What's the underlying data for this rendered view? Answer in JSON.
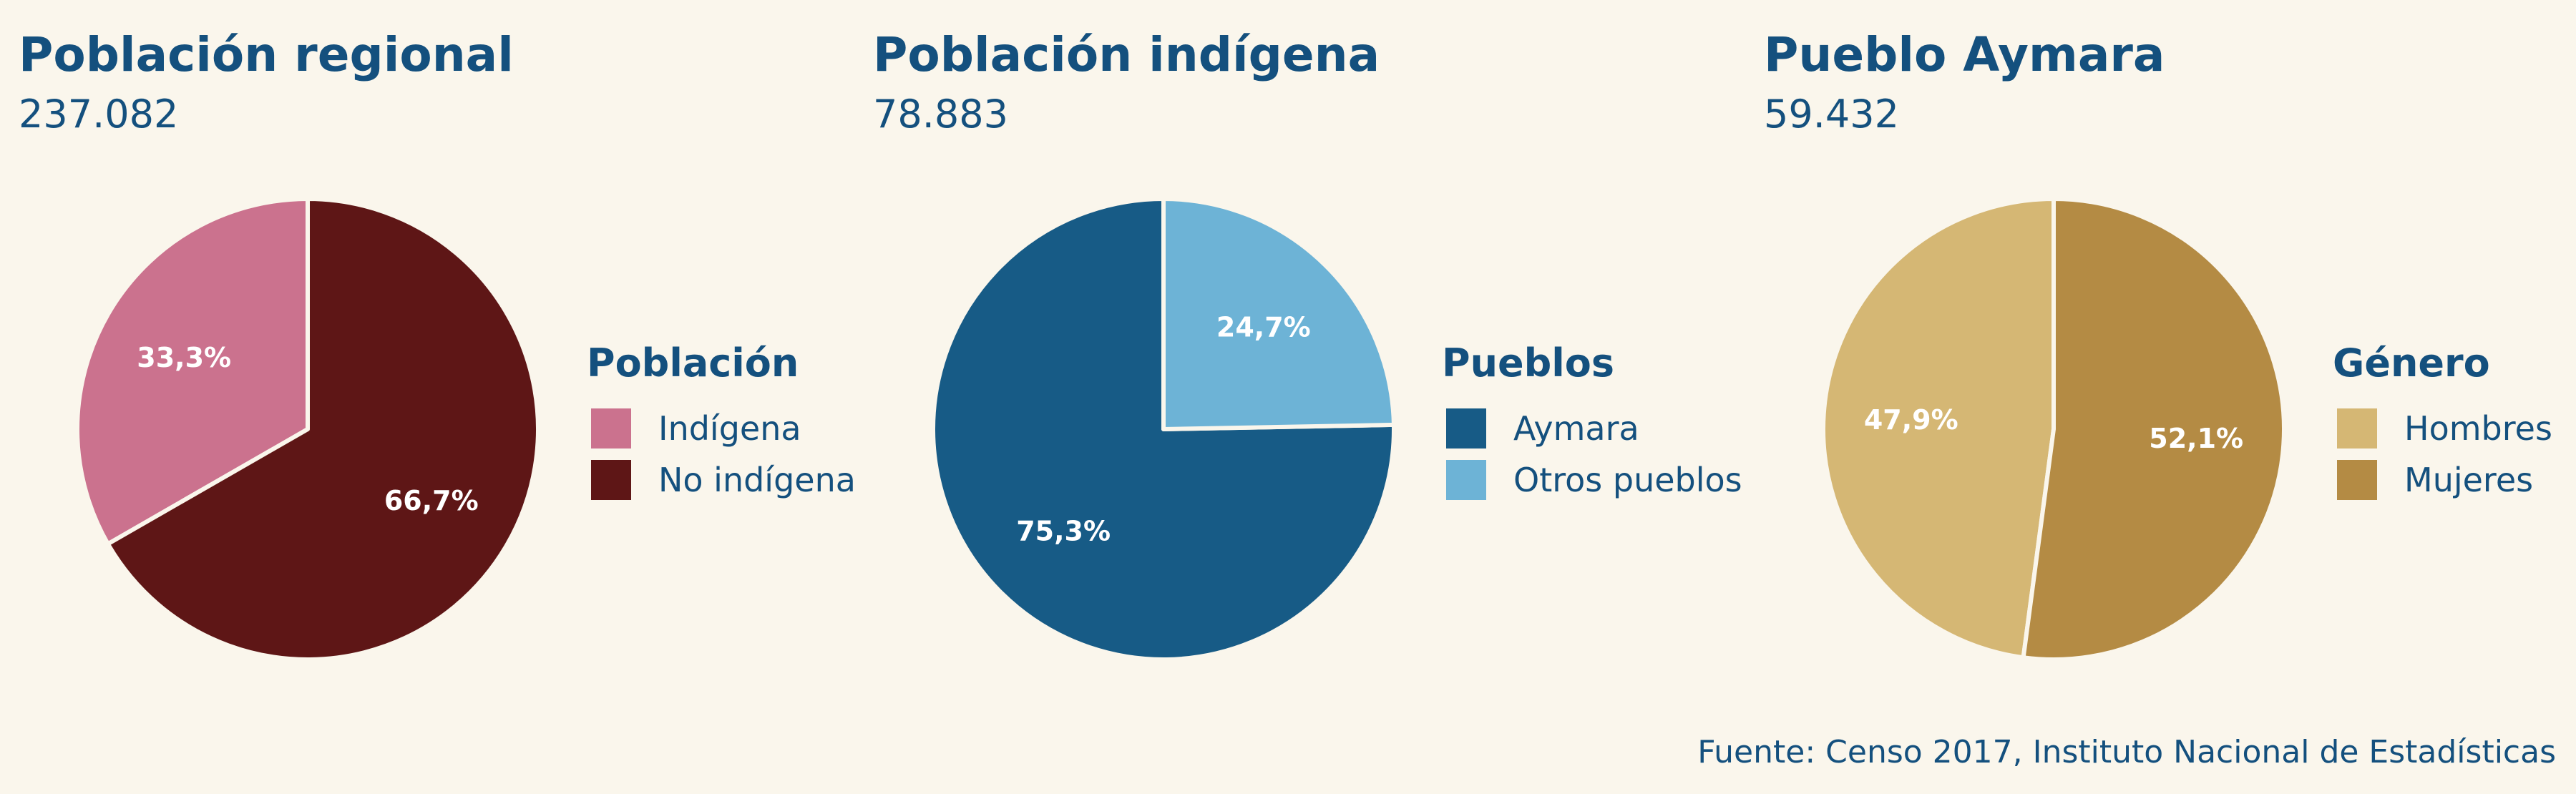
{
  "chart_data": [
    {
      "type": "pie",
      "title": "Población regional",
      "total": "237.082",
      "legend_title": "Población",
      "legend_placement": "right",
      "slices": [
        {
          "label": "Indígena",
          "value": 33.3,
          "value_label": "33,3%",
          "color": "#cb728e"
        },
        {
          "label": "No indígena",
          "value": 66.7,
          "value_label": "66,7%",
          "color": "#5e1616"
        }
      ]
    },
    {
      "type": "pie",
      "title": "Población indígena",
      "total": "78.883",
      "legend_title": "Pueblos",
      "legend_placement": "right",
      "slices": [
        {
          "label": "Aymara",
          "value": 75.3,
          "value_label": "75,3%",
          "color": "#175b86"
        },
        {
          "label": "Otros pueblos",
          "value": 24.7,
          "value_label": "24,7%",
          "color": "#6db3d6"
        }
      ]
    },
    {
      "type": "pie",
      "title": "Pueblo Aymara",
      "total": "59.432",
      "legend_title": "Género",
      "legend_placement": "right",
      "slices": [
        {
          "label": "Hombres",
          "value": 47.9,
          "value_label": "47,9%",
          "color": "#d5b774"
        },
        {
          "label": "Mujeres",
          "value": 52.1,
          "value_label": "52,1%",
          "color": "#b48b44"
        }
      ]
    }
  ],
  "source": "Fuente: Censo 2017, Instituto Nacional de Estadísticas"
}
